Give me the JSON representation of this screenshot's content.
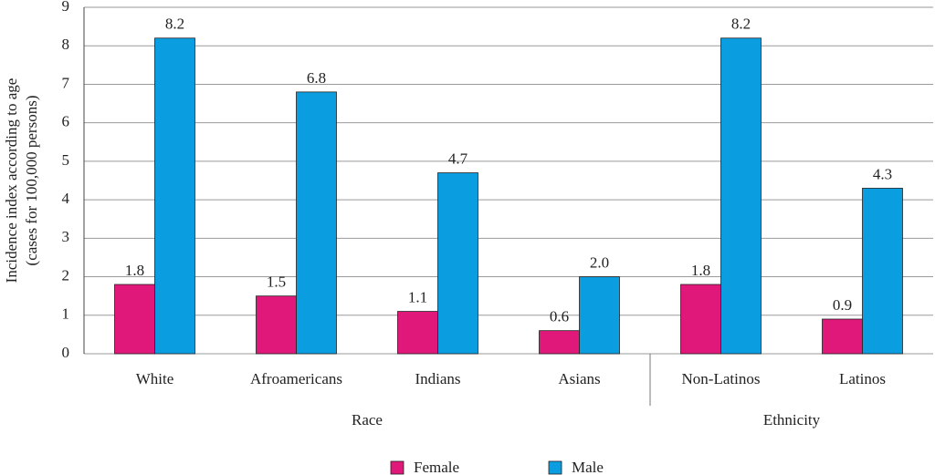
{
  "chart_data": {
    "type": "bar",
    "ylabel": [
      "Incidence index according to age",
      "(cases for 100,000 persons)"
    ],
    "categories": [
      "White",
      "Afroamericans",
      "Indians",
      "Asians",
      "Non-Latinos",
      "Latinos"
    ],
    "category_groups": [
      {
        "label": "Race",
        "span": 4
      },
      {
        "label": "Ethnicity",
        "span": 2
      }
    ],
    "series": [
      {
        "name": "Female",
        "color": "#e0187a",
        "values": [
          1.8,
          1.5,
          1.1,
          0.6,
          1.8,
          0.9
        ],
        "value_labels": [
          "1.8",
          "1.5",
          "1.1",
          "0.6",
          "1.8",
          "0.9"
        ]
      },
      {
        "name": "Male",
        "color": "#0a9ee0",
        "values": [
          8.2,
          6.8,
          4.7,
          2.0,
          8.2,
          4.3
        ],
        "value_labels": [
          "8.2",
          "6.8",
          "4.7",
          "2.0",
          "8.2",
          "4.3"
        ]
      }
    ],
    "ylim": [
      0,
      9
    ],
    "yticks": [
      0,
      1,
      2,
      3,
      4,
      5,
      6,
      7,
      8,
      9
    ],
    "grid": true,
    "legend": "bottom"
  }
}
